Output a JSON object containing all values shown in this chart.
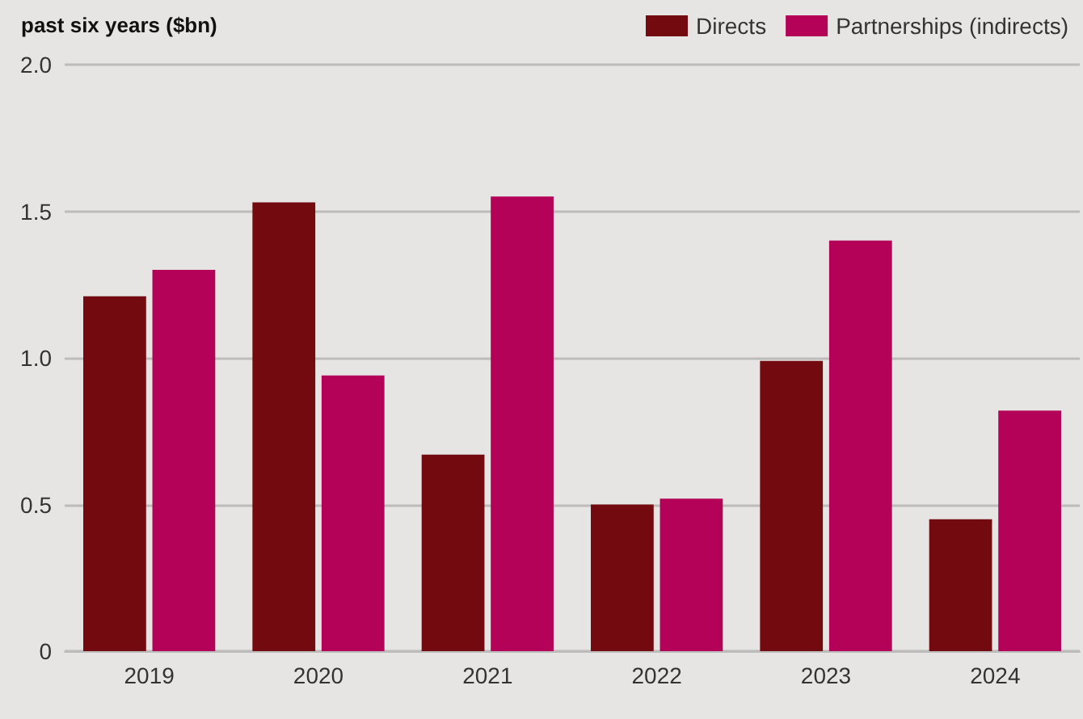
{
  "chart_data": {
    "type": "bar",
    "title": "past six years ($bn)",
    "categories": [
      "2019",
      "2020",
      "2021",
      "2022",
      "2023",
      "2024"
    ],
    "series": [
      {
        "name": "Directs",
        "color": "#720a10",
        "values": [
          1.21,
          1.53,
          0.67,
          0.5,
          0.99,
          0.45
        ]
      },
      {
        "name": "Partnerships (indirects)",
        "color": "#b30257",
        "values": [
          1.3,
          0.94,
          1.55,
          0.52,
          1.4,
          0.82
        ]
      }
    ],
    "ylim": [
      0,
      2
    ],
    "yticks": [
      0,
      0.5,
      {
        "value": 1,
        "label": "1.0"
      },
      1.5,
      {
        "value": 2,
        "label": "2.0"
      }
    ],
    "grid": "y",
    "legend": "top right"
  }
}
